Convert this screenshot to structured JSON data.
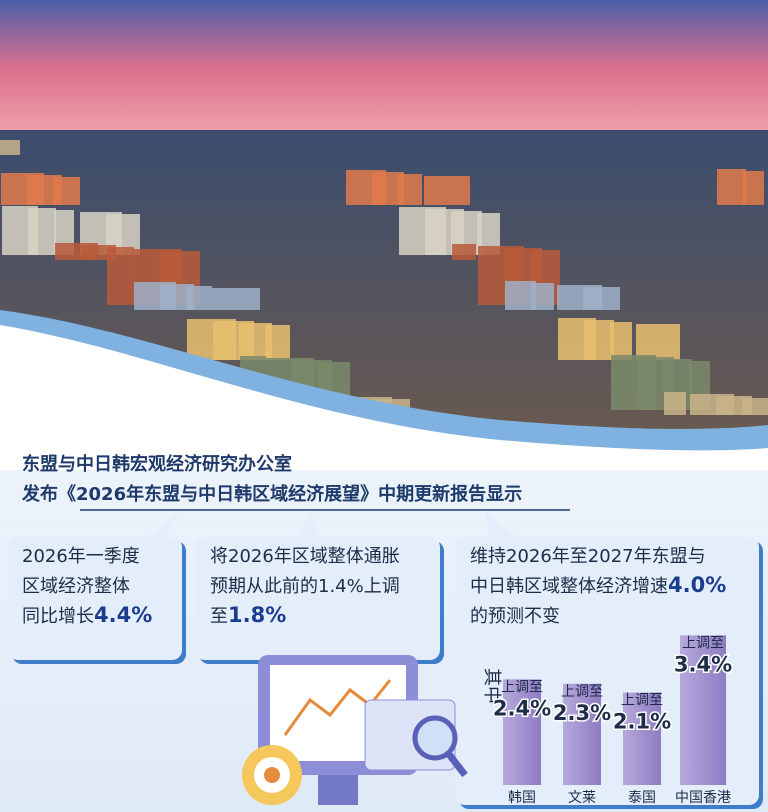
{
  "header": {
    "lines": [
      "东盟与中日韩宏观经济研究办公室",
      "发布《2026年东盟与中日韩区域经济展望》中期更新报告显示"
    ]
  },
  "boxes": [
    {
      "lines": [
        {
          "text": "2026年一季度"
        },
        {
          "text": "区域经济整体"
        },
        {
          "text": "同比增长",
          "highlight": "4.4%"
        }
      ]
    },
    {
      "lines": [
        {
          "text": "将2026年区域整体通胀"
        },
        {
          "text": "预期从此前的1.4%上调"
        },
        {
          "text": "至",
          "highlight": "1.8%"
        }
      ]
    },
    {
      "lines": [
        {
          "text": "维持2026年至2027年东盟与"
        },
        {
          "text": "中日韩区域整体经济增速",
          "highlight": "4.0%"
        },
        {
          "text": "的预测不变"
        }
      ]
    }
  ],
  "forecast": {
    "note": "其中",
    "items": [
      {
        "name": "韩国",
        "prefix": "上调至",
        "value": 2.4,
        "value_label": "2.4%"
      },
      {
        "name": "文莱",
        "prefix": "上调至",
        "value": 2.3,
        "value_label": "2.3%"
      },
      {
        "name": "泰国",
        "prefix": "上调至",
        "value": 2.1,
        "value_label": "2.1%"
      },
      {
        "name": "中国香港",
        "prefix": "上调至",
        "value": 3.4,
        "value_label": "3.4%"
      }
    ]
  }
}
